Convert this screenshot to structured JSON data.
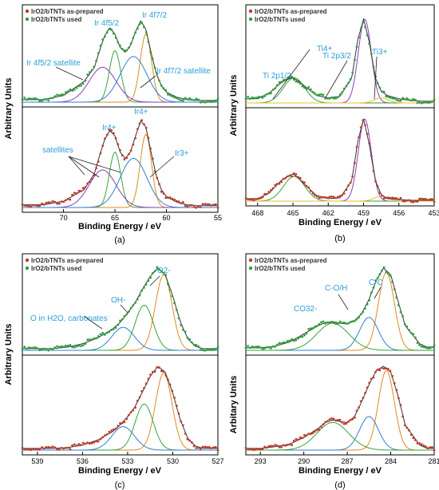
{
  "colors": {
    "asprep": "#c0392b",
    "used": "#2e9e3e",
    "envelope": "#333333",
    "green": "#3aa23a",
    "blue": "#2f7fd0",
    "orange": "#e08a1e",
    "purple": "#8a3cc2",
    "pink": "#e266b5",
    "yellow": "#e8c22a",
    "annot": "#2a9fd6"
  },
  "chart_data": [
    {
      "id": "a",
      "type": "line",
      "panel_label": "(a)",
      "xlabel": "Binding Energy / eV",
      "ylabel": "Arbitrary Units",
      "xlim": [
        74,
        55
      ],
      "xticks": [
        "70",
        "65",
        "60",
        "55"
      ],
      "xtick_values": [
        70,
        65,
        60,
        55
      ],
      "legend": [
        "IrO2/bTNTs as-prepared",
        "IrO2/bTNTs used"
      ],
      "annotations": [
        "Ir 4f5/2",
        "Ir 4f7/2",
        "Ir 4f5/2 satellite",
        "Ir 4f7/2 satellite",
        "Ir4+",
        "Ir4+",
        "Ir3+",
        "satellites"
      ],
      "series": [
        {
          "name": "IrO2/bTNTs used",
          "x": [
            72,
            70,
            68,
            67,
            66.5,
            66,
            65.5,
            65,
            64.5,
            64,
            63.5,
            63,
            62.5,
            62,
            61.5,
            61,
            60.5,
            60,
            59,
            58,
            57,
            56
          ],
          "y": [
            0.03,
            0.08,
            0.25,
            0.42,
            0.62,
            0.8,
            0.9,
            0.82,
            0.66,
            0.6,
            0.68,
            0.85,
            0.98,
            0.88,
            0.6,
            0.35,
            0.2,
            0.12,
            0.06,
            0.03,
            0.02,
            0.02
          ]
        },
        {
          "name": "IrO2/bTNTs as-prepared",
          "x": [
            72,
            70,
            68,
            67,
            66.5,
            66,
            65.5,
            65,
            64.5,
            64,
            63.5,
            63,
            62.5,
            62,
            61.5,
            61,
            60.5,
            60,
            59,
            58,
            57,
            56
          ],
          "y": [
            0.03,
            0.07,
            0.2,
            0.38,
            0.58,
            0.76,
            0.86,
            0.8,
            0.62,
            0.55,
            0.62,
            0.8,
            0.97,
            0.9,
            0.62,
            0.36,
            0.2,
            0.12,
            0.06,
            0.03,
            0.02,
            0.02
          ]
        }
      ]
    },
    {
      "id": "b",
      "type": "line",
      "panel_label": "(b)",
      "xlabel": "Binding Energy / eV",
      "ylabel": "Arbitrary Units",
      "xlim": [
        469,
        453
      ],
      "xticks": [
        "468",
        "465",
        "462",
        "459",
        "456",
        "453"
      ],
      "xtick_values": [
        468,
        465,
        462,
        459,
        456,
        453
      ],
      "legend": [
        "IrO2/bTNTs as-prepared",
        "IrO2/bTNTs used"
      ],
      "annotations": [
        "Ti4+",
        "Ti 2p3/2",
        "Ti3+",
        "Ti 2p1/2"
      ],
      "series": [
        {
          "name": "IrO2/bTNTs used",
          "x": [
            468,
            467,
            466,
            465.5,
            465,
            464.5,
            464,
            463,
            462,
            461,
            460,
            459.5,
            459,
            458.5,
            458,
            457.5,
            457,
            456,
            455,
            454
          ],
          "y": [
            0.05,
            0.12,
            0.24,
            0.28,
            0.3,
            0.26,
            0.2,
            0.09,
            0.06,
            0.08,
            0.3,
            0.75,
            1.0,
            0.72,
            0.3,
            0.14,
            0.09,
            0.05,
            0.03,
            0.02
          ]
        },
        {
          "name": "IrO2/bTNTs as-prepared",
          "x": [
            468,
            467,
            466,
            465.5,
            465,
            464.5,
            464,
            463,
            462,
            461,
            460,
            459.5,
            459,
            458.5,
            458,
            457.5,
            457,
            456,
            455,
            454
          ],
          "y": [
            0.03,
            0.1,
            0.25,
            0.3,
            0.33,
            0.28,
            0.2,
            0.07,
            0.03,
            0.04,
            0.25,
            0.72,
            1.0,
            0.68,
            0.25,
            0.08,
            0.03,
            0.02,
            0.01,
            0.01
          ]
        }
      ]
    },
    {
      "id": "c",
      "type": "line",
      "panel_label": "(c)",
      "xlabel": "Binding Energy / eV",
      "ylabel": "Arbitrary Units",
      "xlim": [
        540,
        527
      ],
      "xticks": [
        "539",
        "536",
        "533",
        "530",
        "527"
      ],
      "xtick_values": [
        539,
        536,
        533,
        530,
        527
      ],
      "legend": [
        "IrO2/bTNTs as-prepared",
        "IrO2/bTNTs used"
      ],
      "annotations": [
        "O2-",
        "OH-",
        "O in H2O, carbonates"
      ],
      "series": [
        {
          "name": "IrO2/bTNTs used",
          "x": [
            538,
            537,
            536,
            535,
            534,
            533.5,
            533,
            532.5,
            532,
            531.5,
            531,
            530.5,
            530,
            529.5,
            529,
            528.5,
            528
          ],
          "y": [
            0.02,
            0.04,
            0.08,
            0.15,
            0.26,
            0.34,
            0.45,
            0.58,
            0.75,
            0.9,
            1.0,
            0.92,
            0.66,
            0.35,
            0.14,
            0.05,
            0.02
          ]
        },
        {
          "name": "IrO2/bTNTs as-prepared",
          "x": [
            538,
            537,
            536,
            535,
            534,
            533.5,
            533,
            532.5,
            532,
            531.5,
            531,
            530.5,
            530,
            529.5,
            529,
            528.5,
            528
          ],
          "y": [
            0.02,
            0.03,
            0.06,
            0.12,
            0.22,
            0.3,
            0.4,
            0.52,
            0.7,
            0.88,
            1.0,
            0.93,
            0.68,
            0.36,
            0.14,
            0.05,
            0.02
          ]
        }
      ]
    },
    {
      "id": "d",
      "type": "line",
      "panel_label": "(d)",
      "xlabel": "Binding Energy / eV",
      "ylabel": "Arbitary Units",
      "xlim": [
        294,
        281
      ],
      "xticks": [
        "293",
        "290",
        "287",
        "284",
        "281"
      ],
      "xtick_values": [
        293,
        290,
        287,
        284,
        281
      ],
      "legend": [
        "IrO2/bTNTs as-prepared",
        "IrO2/bTNTs used"
      ],
      "annotations": [
        "C-C",
        "C-O/H",
        "CO32-"
      ],
      "series": [
        {
          "name": "IrO2/bTNTs used",
          "x": [
            293,
            292,
            291,
            290,
            289,
            288.5,
            288,
            287.5,
            287,
            286.5,
            286,
            285.5,
            285,
            284.5,
            284,
            283.5,
            283,
            282,
            281.5
          ],
          "y": [
            0.03,
            0.05,
            0.1,
            0.2,
            0.3,
            0.34,
            0.35,
            0.33,
            0.32,
            0.36,
            0.45,
            0.62,
            0.85,
            1.0,
            0.92,
            0.6,
            0.3,
            0.08,
            0.04
          ]
        },
        {
          "name": "IrO2/bTNTs as-prepared",
          "x": [
            293,
            292,
            291,
            290,
            289,
            288.5,
            288,
            287.5,
            287,
            286.5,
            286,
            285.5,
            285,
            284.5,
            284,
            283.5,
            283,
            282,
            281.5
          ],
          "y": [
            0.02,
            0.04,
            0.07,
            0.15,
            0.26,
            0.33,
            0.36,
            0.34,
            0.33,
            0.4,
            0.58,
            0.78,
            0.95,
            1.0,
            0.93,
            0.65,
            0.3,
            0.06,
            0.02
          ]
        }
      ]
    }
  ]
}
